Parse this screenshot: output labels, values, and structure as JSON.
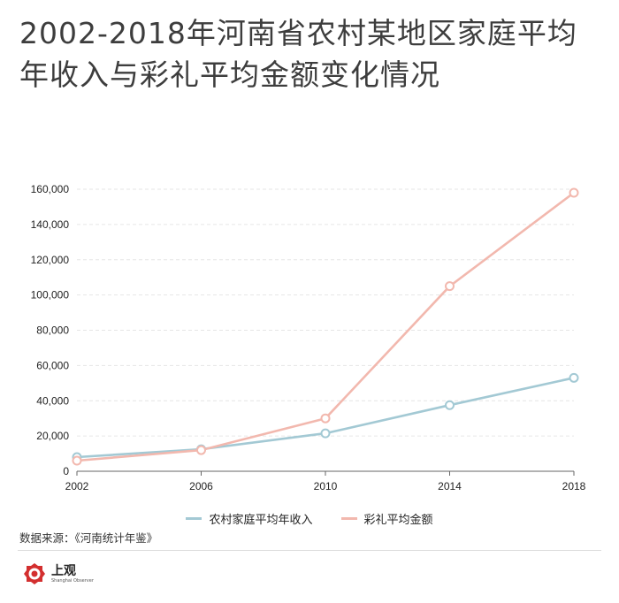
{
  "title": "2002-2018年河南省农村某地区家庭平均年收入与彩礼平均金额变化情况",
  "source": "数据来源：《河南统计年鉴》",
  "logo": {
    "text_cn": "上观",
    "text_en": "Shanghai Observer"
  },
  "colors": {
    "income": "#a3c9d4",
    "bride_price": "#f2b8ae",
    "grid": "#e6e6e6",
    "brand": "#d32f2f"
  },
  "chart_data": {
    "type": "line",
    "title": "2002-2018年河南省农村某地区家庭平均年收入与彩礼平均金额变化情况",
    "xlabel": "",
    "ylabel": "",
    "x": [
      2002,
      2006,
      2010,
      2014,
      2018
    ],
    "x_tick_labels": [
      "2002",
      "2006",
      "2010",
      "2014",
      "2018"
    ],
    "ylim": [
      0,
      160000
    ],
    "y_ticks": [
      0,
      20000,
      40000,
      60000,
      80000,
      100000,
      120000,
      140000,
      160000
    ],
    "y_tick_labels": [
      "0",
      "20,000",
      "40,000",
      "60,000",
      "80,000",
      "100,000",
      "120,000",
      "140,000",
      "160,000"
    ],
    "series": [
      {
        "name": "农村家庭平均年收入",
        "color": "#a3c9d4",
        "values": [
          8000,
          12500,
          21500,
          37500,
          53000
        ]
      },
      {
        "name": "彩礼平均金额",
        "color": "#f2b8ae",
        "values": [
          6000,
          12000,
          30000,
          105000,
          158000
        ]
      }
    ],
    "legend_position": "bottom",
    "grid": true
  }
}
